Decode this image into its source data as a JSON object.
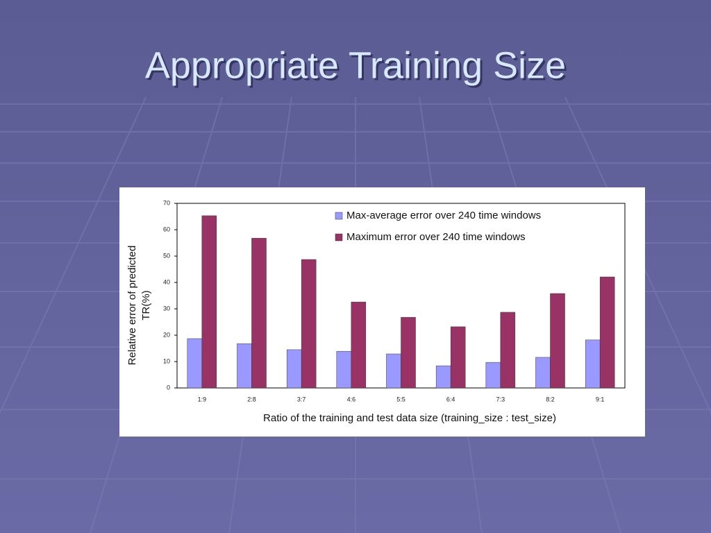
{
  "slide": {
    "title": "Appropriate Training Size"
  },
  "chart_data": {
    "type": "bar",
    "xlabel": "Ratio of the training and test data size (training_size : test_size)",
    "ylabel": [
      "Relative error of predicted",
      "TR(%)"
    ],
    "categories": [
      "1:9",
      "2:8",
      "3:7",
      "4:6",
      "5:5",
      "6:4",
      "7:3",
      "8:2",
      "9:1"
    ],
    "series": [
      {
        "name": "Max-average error over 240 time windows",
        "color": "#9999ff",
        "values": [
          18.7,
          16.8,
          14.5,
          13.9,
          12.9,
          8.4,
          9.7,
          11.6,
          18.2
        ]
      },
      {
        "name": "Maximum error over 240 time windows",
        "color": "#993366",
        "values": [
          65.3,
          56.8,
          48.7,
          32.6,
          26.8,
          23.2,
          28.7,
          35.8,
          42.1
        ]
      }
    ],
    "ylim": [
      0,
      70
    ],
    "yticks": [
      0,
      10,
      20,
      30,
      40,
      50,
      60,
      70
    ],
    "grid": false,
    "legend": "top-right"
  }
}
